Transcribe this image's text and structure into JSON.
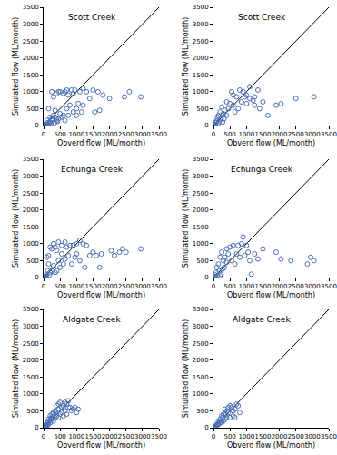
{
  "chart_data": [
    {
      "type": "scatter",
      "title": "Scott Creek",
      "x_label": "Obverd flow (ML/month)",
      "y_label": "Simulated flow (ML/month)",
      "color": "#4a6fb5",
      "marker": "circle-open",
      "x": [
        2950,
        2600,
        2450,
        2000,
        1800,
        1650,
        1500,
        1300,
        1200,
        1100,
        1000,
        950,
        900,
        850,
        750,
        700,
        650,
        600,
        500,
        450,
        400,
        300,
        250,
        1550,
        1700,
        1150,
        1050,
        1400,
        800,
        700,
        600,
        500,
        450,
        400,
        350,
        300,
        250,
        200,
        200,
        150,
        150,
        100,
        100,
        80,
        60,
        50,
        40,
        30,
        20,
        10,
        5,
        0,
        120,
        170,
        220,
        260,
        330,
        380,
        420,
        550,
        650,
        750,
        900,
        1000,
        1200
      ],
      "values": [
        850,
        1000,
        850,
        800,
        900,
        1000,
        1050,
        1000,
        1100,
        1000,
        500,
        1050,
        950,
        1050,
        900,
        1050,
        1000,
        950,
        1000,
        1000,
        950,
        850,
        1000,
        400,
        450,
        400,
        650,
        800,
        600,
        500,
        300,
        350,
        200,
        150,
        450,
        300,
        200,
        250,
        100,
        500,
        50,
        150,
        80,
        30,
        20,
        40,
        10,
        5,
        0,
        0,
        0,
        0,
        40,
        90,
        60,
        150,
        80,
        200,
        120,
        250,
        150,
        300,
        400,
        300,
        600
      ],
      "xlim": [
        0,
        3500
      ],
      "ylim": [
        0,
        3500
      ],
      "xticks": [
        0,
        500,
        1000,
        1500,
        2000,
        2500,
        3000,
        3500
      ],
      "yticks": [
        0,
        500,
        1000,
        1500,
        2000,
        2500,
        3000,
        3500
      ]
    },
    {
      "type": "scatter",
      "title": "Scott Creek",
      "x_label": "Obverd flow (ML/month)",
      "y_label": "Simulated flow (ML/month)",
      "color": "#4a6fb5",
      "marker": "circle-open",
      "x": [
        3050,
        2500,
        2050,
        1900,
        1650,
        1500,
        1350,
        1250,
        1100,
        1000,
        900,
        800,
        700,
        600,
        550,
        500,
        400,
        350,
        300,
        250,
        200,
        150,
        100,
        80,
        50,
        20,
        0,
        10,
        120,
        180,
        230,
        270,
        320,
        400,
        450,
        600,
        650,
        750,
        850,
        1000,
        1100,
        1250,
        1400,
        1200,
        950,
        60,
        40,
        140,
        280
      ],
      "values": [
        850,
        800,
        650,
        600,
        300,
        700,
        1050,
        850,
        1150,
        900,
        1000,
        1050,
        850,
        900,
        1000,
        650,
        700,
        450,
        350,
        550,
        400,
        300,
        150,
        80,
        30,
        10,
        0,
        5,
        250,
        120,
        200,
        300,
        200,
        300,
        500,
        600,
        400,
        500,
        700,
        650,
        800,
        600,
        500,
        750,
        850,
        100,
        20,
        60,
        100
      ],
      "xlim": [
        0,
        3500
      ],
      "ylim": [
        0,
        3500
      ],
      "xticks": [
        0,
        500,
        1000,
        1500,
        2000,
        2500,
        3000,
        3500
      ],
      "yticks": [
        0,
        500,
        1000,
        1500,
        2000,
        2500,
        3000,
        3500
      ]
    },
    {
      "type": "scatter",
      "title": "Echunga Creek",
      "x_label": "Obverd flow (ML/month)",
      "y_label": "Simulated flow (ML/month)",
      "color": "#4a6fb5",
      "marker": "circle-open",
      "x": [
        2950,
        2500,
        2300,
        2050,
        1750,
        1500,
        1300,
        1200,
        1100,
        1000,
        900,
        800,
        700,
        650,
        550,
        450,
        400,
        350,
        300,
        250,
        200,
        150,
        100,
        1700,
        1250,
        1100,
        1000,
        950,
        850,
        750,
        650,
        600,
        500,
        450,
        400,
        300,
        250,
        200,
        150,
        100,
        80,
        60,
        40,
        20,
        10,
        0,
        120,
        180,
        350,
        550,
        1400,
        1600,
        2150,
        2400
      ],
      "values": [
        850,
        750,
        750,
        800,
        700,
        750,
        950,
        1000,
        1100,
        1000,
        950,
        950,
        900,
        1050,
        950,
        1050,
        800,
        900,
        1000,
        850,
        900,
        650,
        600,
        300,
        300,
        500,
        700,
        600,
        400,
        650,
        550,
        400,
        300,
        500,
        200,
        350,
        200,
        150,
        400,
        100,
        50,
        30,
        20,
        0,
        0,
        0,
        200,
        80,
        150,
        700,
        650,
        650,
        650,
        850
      ],
      "xlim": [
        0,
        3500
      ],
      "ylim": [
        0,
        3500
      ],
      "xticks": [
        0,
        500,
        1000,
        1500,
        2000,
        2500,
        3000,
        3500
      ],
      "yticks": [
        0,
        500,
        1000,
        1500,
        2000,
        2500,
        3000,
        3500
      ]
    },
    {
      "type": "scatter",
      "title": "Echunga Creek",
      "x_label": "Obverd flow (ML/month)",
      "y_label": "Simulated flow (ML/month)",
      "color": "#4a6fb5",
      "marker": "circle-open",
      "x": [
        3050,
        2950,
        2850,
        2350,
        2050,
        1900,
        1500,
        1350,
        1150,
        1050,
        1000,
        900,
        850,
        750,
        700,
        600,
        500,
        450,
        400,
        350,
        300,
        250,
        200,
        150,
        100,
        80,
        50,
        30,
        10,
        0,
        120,
        180,
        230,
        280,
        330,
        400,
        550,
        650,
        800,
        950,
        1100,
        1250,
        60,
        200
      ],
      "values": [
        500,
        600,
        400,
        500,
        550,
        750,
        850,
        550,
        100,
        750,
        950,
        1200,
        1000,
        950,
        700,
        950,
        900,
        700,
        850,
        600,
        500,
        750,
        600,
        400,
        300,
        150,
        80,
        30,
        0,
        0,
        50,
        200,
        100,
        250,
        300,
        450,
        500,
        400,
        600,
        650,
        500,
        700,
        20,
        50
      ],
      "xlim": [
        0,
        3500
      ],
      "ylim": [
        0,
        3500
      ],
      "xticks": [
        0,
        500,
        1000,
        1500,
        2000,
        2500,
        3000,
        3500
      ],
      "yticks": [
        0,
        500,
        1000,
        1500,
        2000,
        2500,
        3000,
        3500
      ]
    },
    {
      "type": "scatter",
      "title": "Aldgate Creek",
      "x_label": "Obverd flow (ML/month)",
      "y_label": "Simulated flow (ML/month)",
      "color": "#4a6fb5",
      "marker": "circle-open",
      "x": [
        1050,
        1000,
        950,
        900,
        850,
        800,
        750,
        700,
        650,
        600,
        550,
        500,
        450,
        400,
        350,
        300,
        250,
        200,
        150,
        100,
        80,
        50,
        30,
        10,
        0,
        700,
        600,
        500,
        450,
        400,
        350,
        300,
        250,
        200,
        150,
        120,
        100,
        60,
        40,
        20,
        650,
        550,
        750,
        450,
        380,
        280,
        180,
        130,
        220
      ],
      "values": [
        550,
        450,
        600,
        550,
        500,
        600,
        800,
        700,
        750,
        650,
        600,
        750,
        550,
        650,
        500,
        450,
        400,
        350,
        250,
        150,
        100,
        50,
        20,
        0,
        0,
        400,
        350,
        400,
        300,
        350,
        300,
        200,
        250,
        150,
        100,
        80,
        50,
        30,
        10,
        10,
        500,
        450,
        600,
        700,
        450,
        330,
        200,
        180,
        280
      ],
      "xlim": [
        0,
        3500
      ],
      "ylim": [
        0,
        3500
      ],
      "xticks": [
        0,
        500,
        1000,
        1500,
        2000,
        2500,
        3000,
        3500
      ],
      "yticks": [
        0,
        500,
        1000,
        1500,
        2000,
        2500,
        3000,
        3500
      ]
    },
    {
      "type": "scatter",
      "title": "Aldgate Creek",
      "x_label": "Obverd flow (ML/month)",
      "y_label": "Simulated flow (ML/month)",
      "color": "#4a6fb5",
      "marker": "circle-open",
      "x": [
        800,
        750,
        700,
        650,
        600,
        550,
        500,
        450,
        400,
        350,
        300,
        250,
        200,
        150,
        100,
        80,
        50,
        30,
        10,
        0,
        600,
        500,
        400,
        350,
        300,
        250,
        200,
        150,
        120,
        70,
        450,
        380,
        280,
        180,
        650
      ],
      "values": [
        450,
        650,
        700,
        550,
        500,
        600,
        650,
        450,
        500,
        550,
        400,
        350,
        250,
        200,
        100,
        60,
        40,
        20,
        0,
        0,
        350,
        300,
        300,
        250,
        200,
        150,
        150,
        100,
        80,
        30,
        600,
        400,
        300,
        180,
        300
      ],
      "xlim": [
        0,
        3500
      ],
      "ylim": [
        0,
        3500
      ],
      "xticks": [
        0,
        500,
        1000,
        1500,
        2000,
        2500,
        3000,
        3500
      ],
      "yticks": [
        0,
        500,
        1000,
        1500,
        2000,
        2500,
        3000,
        3500
      ]
    }
  ]
}
